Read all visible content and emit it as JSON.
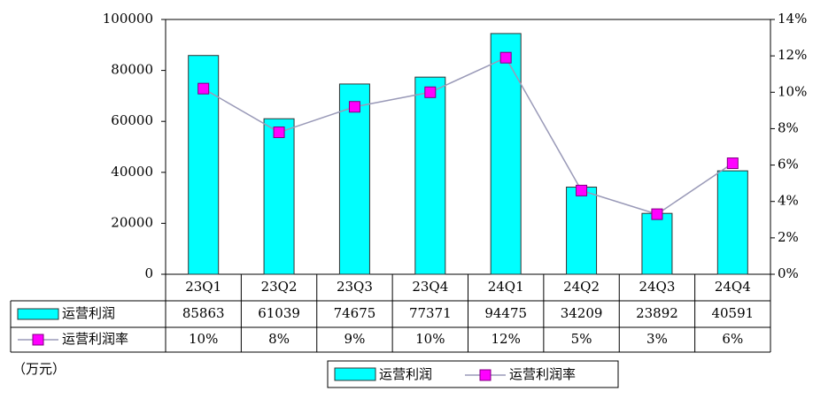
{
  "chart_data": {
    "type": "bar-line-table",
    "categories": [
      "23Q1",
      "23Q2",
      "23Q3",
      "23Q4",
      "24Q1",
      "24Q2",
      "24Q3",
      "24Q4"
    ],
    "series": [
      {
        "name": "运营利润",
        "type": "bar",
        "color": "#00ffff",
        "values": [
          85863,
          61039,
          74675,
          77371,
          94475,
          34209,
          23892,
          40591
        ]
      },
      {
        "name": "运营利润率",
        "type": "line",
        "axis": "y2",
        "color": "#ff00ff",
        "values": [
          10.2,
          7.8,
          9.2,
          10.0,
          11.9,
          4.6,
          3.3,
          6.1
        ],
        "value_labels": [
          "10%",
          "8%",
          "9%",
          "10%",
          "12%",
          "5%",
          "3%",
          "6%"
        ]
      }
    ],
    "ylim": [
      0,
      100000
    ],
    "yticks": [
      0,
      20000,
      40000,
      60000,
      80000,
      100000
    ],
    "y2lim": [
      0,
      14
    ],
    "y2ticks": [
      {
        "value": 0,
        "label": "0%"
      },
      {
        "value": 2,
        "label": "2%"
      },
      {
        "value": 4,
        "label": "4%"
      },
      {
        "value": 6,
        "label": "6%"
      },
      {
        "value": 8,
        "label": "8%"
      },
      {
        "value": 10,
        "label": "10%"
      },
      {
        "value": 12,
        "label": "12%"
      },
      {
        "value": 14,
        "label": "14%"
      }
    ],
    "y_unit": "（万元）",
    "grid": false,
    "legend": "bottom"
  }
}
